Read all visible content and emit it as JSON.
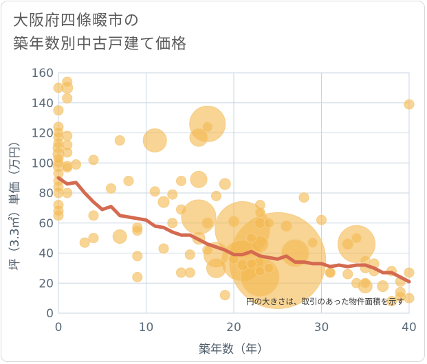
{
  "title": {
    "line1": "大阪府四條畷市の",
    "line2": "築年数別中古戸建て価格"
  },
  "colors": {
    "bubble_fill": "#f3b74e",
    "bubble_stroke": "#f6cd85",
    "trend_line": "#d46a50",
    "grid": "#c8d6e2",
    "background": "#ffffff"
  },
  "chart_data": {
    "type": "scatter",
    "xlabel": "築年数（年）",
    "ylabel": "坪（3.3㎡）単価（万円）",
    "xlim": [
      0,
      40
    ],
    "ylim": [
      0,
      160
    ],
    "x_ticks": [
      "0",
      "10",
      "20",
      "30",
      "40"
    ],
    "y_ticks": [
      "0",
      "20",
      "40",
      "60",
      "80",
      "100",
      "120",
      "140",
      "160"
    ],
    "grid": true,
    "note": "円の大きさは、取引のあった物件面積を示す",
    "bubbles": [
      {
        "x": 0,
        "y": 65,
        "s": 7
      },
      {
        "x": 0,
        "y": 68,
        "s": 7
      },
      {
        "x": 0,
        "y": 72,
        "s": 7
      },
      {
        "x": 0,
        "y": 80,
        "s": 7
      },
      {
        "x": 0,
        "y": 84,
        "s": 7
      },
      {
        "x": 0,
        "y": 88,
        "s": 7
      },
      {
        "x": 0,
        "y": 93,
        "s": 7
      },
      {
        "x": 0,
        "y": 98,
        "s": 8
      },
      {
        "x": 0,
        "y": 100,
        "s": 7
      },
      {
        "x": 0,
        "y": 103,
        "s": 7
      },
      {
        "x": 0,
        "y": 106,
        "s": 8
      },
      {
        "x": 0,
        "y": 110,
        "s": 8
      },
      {
        "x": 0,
        "y": 113,
        "s": 7
      },
      {
        "x": 0,
        "y": 117,
        "s": 7
      },
      {
        "x": 0,
        "y": 120,
        "s": 7
      },
      {
        "x": 0,
        "y": 124,
        "s": 7
      },
      {
        "x": 0,
        "y": 135,
        "s": 7
      },
      {
        "x": 0,
        "y": 150,
        "s": 7
      },
      {
        "x": 1,
        "y": 154,
        "s": 7
      },
      {
        "x": 1,
        "y": 150,
        "s": 8
      },
      {
        "x": 1,
        "y": 143,
        "s": 7
      },
      {
        "x": 1,
        "y": 118,
        "s": 7
      },
      {
        "x": 1,
        "y": 112,
        "s": 7
      },
      {
        "x": 1,
        "y": 107,
        "s": 7
      },
      {
        "x": 1,
        "y": 98,
        "s": 7
      },
      {
        "x": 1,
        "y": 97,
        "s": 7
      },
      {
        "x": 1,
        "y": 80,
        "s": 7
      },
      {
        "x": 2,
        "y": 99,
        "s": 7
      },
      {
        "x": 3,
        "y": 47,
        "s": 7
      },
      {
        "x": 4,
        "y": 102,
        "s": 7
      },
      {
        "x": 4,
        "y": 65,
        "s": 7
      },
      {
        "x": 4,
        "y": 50,
        "s": 7
      },
      {
        "x": 6,
        "y": 83,
        "s": 7
      },
      {
        "x": 7,
        "y": 115,
        "s": 7
      },
      {
        "x": 7,
        "y": 51,
        "s": 10
      },
      {
        "x": 8,
        "y": 88,
        "s": 7
      },
      {
        "x": 9,
        "y": 57,
        "s": 7
      },
      {
        "x": 9,
        "y": 55,
        "s": 7
      },
      {
        "x": 9,
        "y": 38,
        "s": 7
      },
      {
        "x": 9,
        "y": 24,
        "s": 7
      },
      {
        "x": 11,
        "y": 115,
        "s": 17
      },
      {
        "x": 11,
        "y": 81,
        "s": 7
      },
      {
        "x": 12,
        "y": 74,
        "s": 8
      },
      {
        "x": 12,
        "y": 43,
        "s": 7
      },
      {
        "x": 13,
        "y": 79,
        "s": 7
      },
      {
        "x": 13,
        "y": 60,
        "s": 7
      },
      {
        "x": 14,
        "y": 88,
        "s": 7
      },
      {
        "x": 14,
        "y": 69,
        "s": 7
      },
      {
        "x": 14,
        "y": 27,
        "s": 7
      },
      {
        "x": 15,
        "y": 39,
        "s": 7
      },
      {
        "x": 15,
        "y": 27,
        "s": 7
      },
      {
        "x": 16,
        "y": 117,
        "s": 13
      },
      {
        "x": 16,
        "y": 89,
        "s": 12
      },
      {
        "x": 16,
        "y": 64,
        "s": 25
      },
      {
        "x": 16,
        "y": 50,
        "s": 9
      },
      {
        "x": 17,
        "y": 126,
        "s": 26
      },
      {
        "x": 17,
        "y": 124,
        "s": 7
      },
      {
        "x": 17,
        "y": 60,
        "s": 8
      },
      {
        "x": 17,
        "y": 42,
        "s": 7
      },
      {
        "x": 18,
        "y": 78,
        "s": 7
      },
      {
        "x": 18,
        "y": 39,
        "s": 18
      },
      {
        "x": 18,
        "y": 30,
        "s": 14
      },
      {
        "x": 19,
        "y": 86,
        "s": 8
      },
      {
        "x": 19,
        "y": 12,
        "s": 7
      },
      {
        "x": 20,
        "y": 61,
        "s": 8
      },
      {
        "x": 20,
        "y": 36,
        "s": 7
      },
      {
        "x": 21,
        "y": 56,
        "s": 40
      },
      {
        "x": 21,
        "y": 35,
        "s": 30
      },
      {
        "x": 21,
        "y": 32,
        "s": 8
      },
      {
        "x": 22,
        "y": 50,
        "s": 7
      },
      {
        "x": 22,
        "y": 33,
        "s": 7
      },
      {
        "x": 23,
        "y": 72,
        "s": 7
      },
      {
        "x": 23,
        "y": 67,
        "s": 7
      },
      {
        "x": 23,
        "y": 60,
        "s": 8
      },
      {
        "x": 23,
        "y": 46,
        "s": 12
      },
      {
        "x": 23,
        "y": 28,
        "s": 7
      },
      {
        "x": 23,
        "y": 24,
        "s": 28
      },
      {
        "x": 24,
        "y": 60,
        "s": 7
      },
      {
        "x": 24,
        "y": 30,
        "s": 7
      },
      {
        "x": 25,
        "y": 35,
        "s": 70
      },
      {
        "x": 26,
        "y": 58,
        "s": 8
      },
      {
        "x": 27,
        "y": 40,
        "s": 20
      },
      {
        "x": 28,
        "y": 77,
        "s": 7
      },
      {
        "x": 29,
        "y": 47,
        "s": 7
      },
      {
        "x": 30,
        "y": 62,
        "s": 7
      },
      {
        "x": 31,
        "y": 27,
        "s": 7
      },
      {
        "x": 31,
        "y": 27,
        "s": 7
      },
      {
        "x": 33,
        "y": 46,
        "s": 8
      },
      {
        "x": 33,
        "y": 26,
        "s": 7
      },
      {
        "x": 34,
        "y": 50,
        "s": 7
      },
      {
        "x": 34,
        "y": 46,
        "s": 27
      },
      {
        "x": 34,
        "y": 20,
        "s": 7
      },
      {
        "x": 35,
        "y": 35,
        "s": 7
      },
      {
        "x": 35,
        "y": 30,
        "s": 7
      },
      {
        "x": 35,
        "y": 20,
        "s": 7
      },
      {
        "x": 35,
        "y": 18,
        "s": 10
      },
      {
        "x": 36,
        "y": 33,
        "s": 7
      },
      {
        "x": 36,
        "y": 28,
        "s": 7
      },
      {
        "x": 37,
        "y": 18,
        "s": 8
      },
      {
        "x": 38,
        "y": 28,
        "s": 7
      },
      {
        "x": 38,
        "y": 8,
        "s": 7
      },
      {
        "x": 39,
        "y": 21,
        "s": 7
      },
      {
        "x": 39,
        "y": 14,
        "s": 7
      },
      {
        "x": 39,
        "y": 11,
        "s": 7
      },
      {
        "x": 40,
        "y": 139,
        "s": 7
      },
      {
        "x": 40,
        "y": 27,
        "s": 7
      },
      {
        "x": 40,
        "y": 10,
        "s": 7
      }
    ],
    "trend": {
      "x": [
        0,
        1,
        2,
        3,
        4,
        5,
        6,
        7,
        8,
        9,
        10,
        11,
        12,
        13,
        14,
        15,
        16,
        17,
        18,
        19,
        20,
        21,
        22,
        23,
        24,
        25,
        26,
        27,
        28,
        29,
        30,
        31,
        32,
        33,
        34,
        35,
        36,
        37,
        38,
        39,
        40
      ],
      "y": [
        90,
        86,
        87,
        80,
        74,
        69,
        71,
        65,
        64,
        63,
        62,
        58,
        57,
        54,
        52,
        52,
        49,
        46,
        44,
        42,
        39,
        39,
        41,
        38,
        37,
        36,
        38,
        34,
        34,
        33,
        33,
        31,
        32,
        31,
        32,
        32,
        30,
        27,
        27,
        24,
        21
      ]
    }
  }
}
